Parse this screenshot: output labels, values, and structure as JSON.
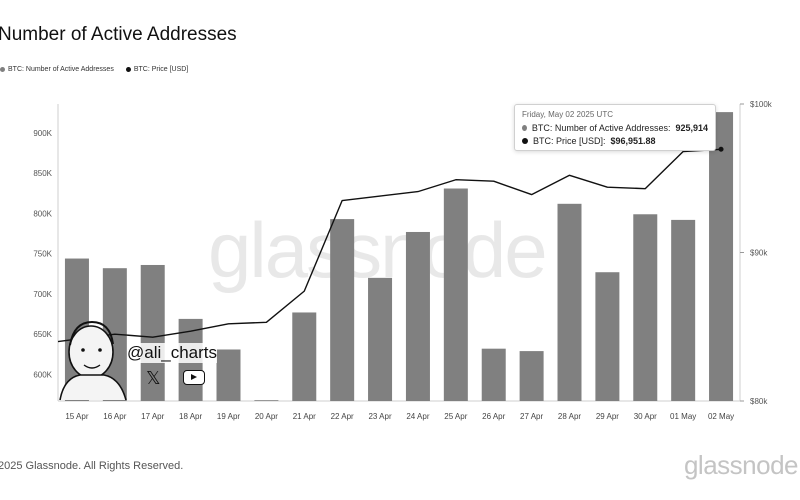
{
  "title": "Number of Active Addresses",
  "legend": [
    {
      "label": "BTC: Number of Active Addresses",
      "color": "#808080"
    },
    {
      "label": "BTC: Price [USD]",
      "color": "#111111"
    }
  ],
  "tooltip": {
    "date": "Friday, May 02 2025 UTC",
    "rows": [
      {
        "label": "BTC: Number of Active Addresses:",
        "value": "925,914",
        "color": "#808080"
      },
      {
        "label": "BTC: Price [USD]:",
        "value": "$96,951.88",
        "color": "#111111"
      }
    ]
  },
  "watermark": "glassnode",
  "footer": "2025 Glassnode. All Rights Reserved.",
  "brand": "glassnode",
  "overlay": {
    "handle": "@ali_charts",
    "x_glyph": "𝕏"
  },
  "chart_data": {
    "type": "bar",
    "categories": [
      "15 Apr",
      "16 Apr",
      "17 Apr",
      "18 Apr",
      "19 Apr",
      "20 Apr",
      "21 Apr",
      "22 Apr",
      "23 Apr",
      "24 Apr",
      "25 Apr",
      "26 Apr",
      "27 Apr",
      "28 Apr",
      "29 Apr",
      "30 Apr",
      "01 May",
      "02 May"
    ],
    "series": [
      {
        "name": "BTC: Number of Active Addresses",
        "type": "bar",
        "axis": "left",
        "color": "#808080",
        "values": [
          744000,
          732000,
          736000,
          669000,
          631000,
          568000,
          677000,
          793000,
          720000,
          777000,
          831000,
          632000,
          629000,
          812000,
          727000,
          799000,
          792000,
          925914
        ]
      },
      {
        "name": "BTC: Price [USD]",
        "type": "line",
        "axis": "right",
        "color": "#111111",
        "values": [
          84000,
          84500,
          84300,
          84700,
          85200,
          85300,
          87400,
          93500,
          93800,
          94100,
          94900,
          94800,
          93900,
          95200,
          94400,
          94300,
          96800,
          96951.88
        ]
      }
    ],
    "y_left": {
      "ticks": [
        600000,
        650000,
        700000,
        750000,
        800000,
        850000,
        900000
      ],
      "tick_labels": [
        "600K",
        "650K",
        "700K",
        "750K",
        "800K",
        "850K",
        "900K"
      ],
      "range": [
        567000,
        936000
      ]
    },
    "y_right": {
      "ticks": [
        80000,
        90000,
        100000
      ],
      "tick_labels": [
        "$80k",
        "$90k",
        "$100k"
      ],
      "range": [
        80000,
        100000
      ]
    },
    "grid": false,
    "legend_position": "top-left"
  }
}
